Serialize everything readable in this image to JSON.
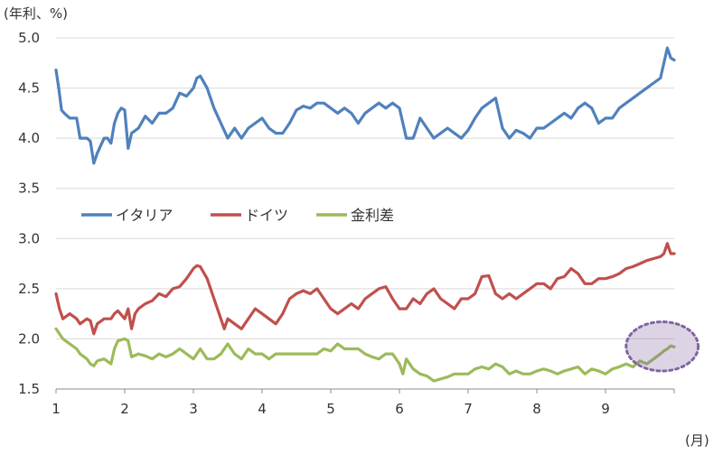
{
  "chart_data": {
    "type": "line",
    "y_unit_label": "(年利、%)",
    "x_unit_label": "(月)",
    "ylim": [
      1.5,
      5.0
    ],
    "yticks": [
      "5.0",
      "4.5",
      "4.0",
      "3.5",
      "3.0",
      "2.5",
      "2.0",
      "1.5"
    ],
    "xlim": [
      1,
      10
    ],
    "xticks": [
      "1",
      "2",
      "3",
      "4",
      "5",
      "6",
      "7",
      "8",
      "9"
    ],
    "grid": true,
    "legend_placement": "middle-left",
    "highlight": {
      "x_range": [
        9.3,
        10.35
      ],
      "y_range": [
        1.68,
        2.17
      ],
      "color": "#8064a2"
    },
    "series": [
      {
        "name": "イタリア",
        "color": "#4f81bd",
        "x": [
          1.0,
          1.04,
          1.08,
          1.12,
          1.2,
          1.3,
          1.35,
          1.45,
          1.5,
          1.55,
          1.6,
          1.7,
          1.75,
          1.8,
          1.85,
          1.9,
          1.95,
          2.0,
          2.05,
          2.1,
          2.2,
          2.3,
          2.4,
          2.5,
          2.6,
          2.7,
          2.8,
          2.9,
          3.0,
          3.05,
          3.1,
          3.2,
          3.3,
          3.4,
          3.5,
          3.6,
          3.7,
          3.8,
          3.9,
          4.0,
          4.1,
          4.2,
          4.3,
          4.4,
          4.5,
          4.6,
          4.7,
          4.8,
          4.9,
          5.0,
          5.1,
          5.2,
          5.3,
          5.4,
          5.5,
          5.6,
          5.7,
          5.8,
          5.9,
          6.0,
          6.1,
          6.2,
          6.3,
          6.4,
          6.5,
          6.6,
          6.7,
          6.8,
          6.9,
          7.0,
          7.1,
          7.2,
          7.3,
          7.4,
          7.5,
          7.6,
          7.7,
          7.8,
          7.9,
          8.0,
          8.1,
          8.2,
          8.3,
          8.4,
          8.5,
          8.6,
          8.7,
          8.8,
          8.9,
          9.0,
          9.1,
          9.2,
          9.3,
          9.4,
          9.5,
          9.6,
          9.7,
          9.8,
          9.85,
          9.9,
          9.95,
          10.0
        ],
        "values": [
          4.68,
          4.5,
          4.28,
          4.25,
          4.2,
          4.2,
          4.0,
          4.0,
          3.97,
          3.75,
          3.85,
          4.0,
          4.0,
          3.95,
          4.15,
          4.25,
          4.3,
          4.28,
          3.9,
          4.05,
          4.1,
          4.22,
          4.15,
          4.25,
          4.25,
          4.3,
          4.45,
          4.42,
          4.5,
          4.6,
          4.62,
          4.5,
          4.3,
          4.15,
          4.0,
          4.1,
          4.0,
          4.1,
          4.15,
          4.2,
          4.1,
          4.05,
          4.05,
          4.15,
          4.28,
          4.32,
          4.3,
          4.35,
          4.35,
          4.3,
          4.25,
          4.3,
          4.25,
          4.15,
          4.25,
          4.3,
          4.35,
          4.3,
          4.35,
          4.3,
          4.0,
          4.0,
          4.2,
          4.1,
          4.0,
          4.05,
          4.1,
          4.05,
          4.0,
          4.08,
          4.2,
          4.3,
          4.35,
          4.4,
          4.1,
          4.0,
          4.08,
          4.05,
          4.0,
          4.1,
          4.1,
          4.15,
          4.2,
          4.25,
          4.2,
          4.3,
          4.35,
          4.3,
          4.15,
          4.2,
          4.2,
          4.3,
          4.35,
          4.4,
          4.45,
          4.5,
          4.55,
          4.6,
          4.75,
          4.9,
          4.8,
          4.78
        ]
      },
      {
        "name": "ドイツ",
        "color": "#c0504d",
        "x": [
          1.0,
          1.05,
          1.1,
          1.2,
          1.3,
          1.35,
          1.45,
          1.5,
          1.55,
          1.6,
          1.7,
          1.8,
          1.85,
          1.9,
          2.0,
          2.05,
          2.1,
          2.15,
          2.2,
          2.3,
          2.4,
          2.5,
          2.6,
          2.7,
          2.8,
          2.9,
          3.0,
          3.05,
          3.1,
          3.2,
          3.3,
          3.4,
          3.45,
          3.5,
          3.6,
          3.7,
          3.8,
          3.9,
          4.0,
          4.1,
          4.2,
          4.3,
          4.4,
          4.5,
          4.6,
          4.7,
          4.8,
          4.9,
          5.0,
          5.1,
          5.2,
          5.3,
          5.4,
          5.5,
          5.6,
          5.7,
          5.8,
          5.9,
          6.0,
          6.1,
          6.2,
          6.3,
          6.4,
          6.5,
          6.6,
          6.7,
          6.8,
          6.9,
          7.0,
          7.1,
          7.2,
          7.3,
          7.4,
          7.5,
          7.6,
          7.7,
          7.8,
          7.9,
          8.0,
          8.1,
          8.2,
          8.3,
          8.4,
          8.5,
          8.6,
          8.7,
          8.8,
          8.9,
          9.0,
          9.1,
          9.2,
          9.3,
          9.4,
          9.5,
          9.6,
          9.7,
          9.8,
          9.85,
          9.9,
          9.95,
          10.0
        ],
        "values": [
          2.45,
          2.3,
          2.2,
          2.25,
          2.2,
          2.15,
          2.2,
          2.18,
          2.05,
          2.15,
          2.2,
          2.2,
          2.25,
          2.28,
          2.2,
          2.3,
          2.1,
          2.25,
          2.3,
          2.35,
          2.38,
          2.45,
          2.42,
          2.5,
          2.52,
          2.6,
          2.7,
          2.73,
          2.72,
          2.6,
          2.4,
          2.2,
          2.1,
          2.2,
          2.15,
          2.1,
          2.2,
          2.3,
          2.25,
          2.2,
          2.15,
          2.25,
          2.4,
          2.45,
          2.48,
          2.45,
          2.5,
          2.4,
          2.3,
          2.25,
          2.3,
          2.35,
          2.3,
          2.4,
          2.45,
          2.5,
          2.52,
          2.4,
          2.3,
          2.3,
          2.4,
          2.35,
          2.45,
          2.5,
          2.4,
          2.35,
          2.3,
          2.4,
          2.4,
          2.45,
          2.62,
          2.63,
          2.45,
          2.4,
          2.45,
          2.4,
          2.45,
          2.5,
          2.55,
          2.55,
          2.5,
          2.6,
          2.62,
          2.7,
          2.65,
          2.55,
          2.55,
          2.6,
          2.6,
          2.62,
          2.65,
          2.7,
          2.72,
          2.75,
          2.78,
          2.8,
          2.82,
          2.85,
          2.95,
          2.85,
          2.85
        ]
      },
      {
        "name": "金利差",
        "color": "#9bbb59",
        "x": [
          1.0,
          1.05,
          1.1,
          1.2,
          1.3,
          1.35,
          1.45,
          1.5,
          1.55,
          1.6,
          1.7,
          1.8,
          1.85,
          1.9,
          2.0,
          2.05,
          2.1,
          2.2,
          2.3,
          2.4,
          2.5,
          2.6,
          2.7,
          2.8,
          2.9,
          3.0,
          3.1,
          3.2,
          3.3,
          3.4,
          3.5,
          3.6,
          3.7,
          3.8,
          3.9,
          4.0,
          4.1,
          4.2,
          4.3,
          4.4,
          4.5,
          4.6,
          4.7,
          4.8,
          4.9,
          5.0,
          5.1,
          5.2,
          5.3,
          5.4,
          5.5,
          5.6,
          5.7,
          5.8,
          5.9,
          6.0,
          6.05,
          6.1,
          6.2,
          6.3,
          6.4,
          6.5,
          6.6,
          6.7,
          6.8,
          6.9,
          7.0,
          7.1,
          7.2,
          7.3,
          7.4,
          7.5,
          7.6,
          7.7,
          7.8,
          7.9,
          8.0,
          8.1,
          8.2,
          8.3,
          8.4,
          8.5,
          8.6,
          8.7,
          8.8,
          8.9,
          9.0,
          9.1,
          9.2,
          9.3,
          9.4,
          9.5,
          9.6,
          9.7,
          9.8,
          9.85,
          9.9,
          9.95,
          10.0
        ],
        "values": [
          2.1,
          2.05,
          2.0,
          1.95,
          1.9,
          1.85,
          1.8,
          1.75,
          1.73,
          1.78,
          1.8,
          1.75,
          1.9,
          1.98,
          2.0,
          1.98,
          1.82,
          1.85,
          1.83,
          1.8,
          1.85,
          1.82,
          1.85,
          1.9,
          1.85,
          1.8,
          1.9,
          1.8,
          1.8,
          1.85,
          1.95,
          1.85,
          1.8,
          1.9,
          1.85,
          1.85,
          1.8,
          1.85,
          1.85,
          1.85,
          1.85,
          1.85,
          1.85,
          1.85,
          1.9,
          1.88,
          1.95,
          1.9,
          1.9,
          1.9,
          1.85,
          1.82,
          1.8,
          1.85,
          1.85,
          1.75,
          1.65,
          1.8,
          1.7,
          1.65,
          1.63,
          1.58,
          1.6,
          1.62,
          1.65,
          1.65,
          1.65,
          1.7,
          1.72,
          1.7,
          1.75,
          1.72,
          1.65,
          1.68,
          1.65,
          1.65,
          1.68,
          1.7,
          1.68,
          1.65,
          1.68,
          1.7,
          1.72,
          1.65,
          1.7,
          1.68,
          1.65,
          1.7,
          1.72,
          1.75,
          1.72,
          1.78,
          1.75,
          1.8,
          1.85,
          1.88,
          1.9,
          1.93,
          1.92
        ]
      }
    ]
  }
}
